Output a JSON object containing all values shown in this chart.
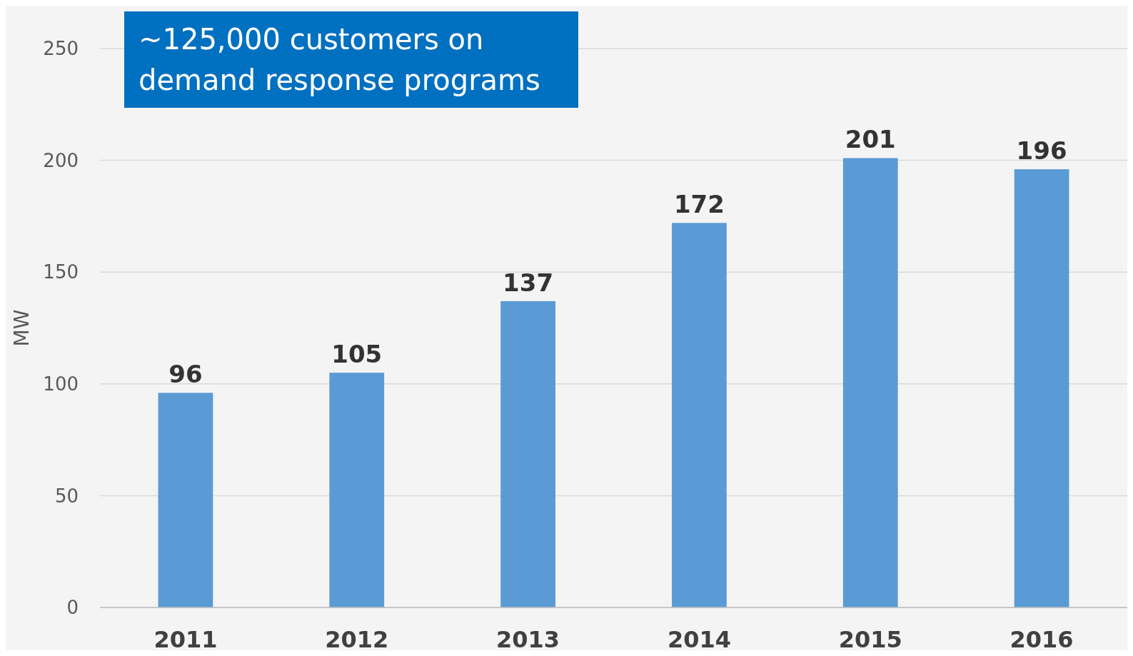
{
  "chart_data": {
    "type": "bar",
    "ylabel": "MW",
    "categories": [
      "2011",
      "2012",
      "2013",
      "2014",
      "2015",
      "2016"
    ],
    "values": [
      96,
      105,
      137,
      172,
      201,
      196
    ],
    "color": "#5b9bd5",
    "ylim": [
      0,
      250
    ],
    "yticks": [
      0,
      50,
      100,
      150,
      200,
      250
    ],
    "grid": "y",
    "data_labels": true,
    "annotations": [
      "~125,000 customers on demand response programs"
    ]
  }
}
